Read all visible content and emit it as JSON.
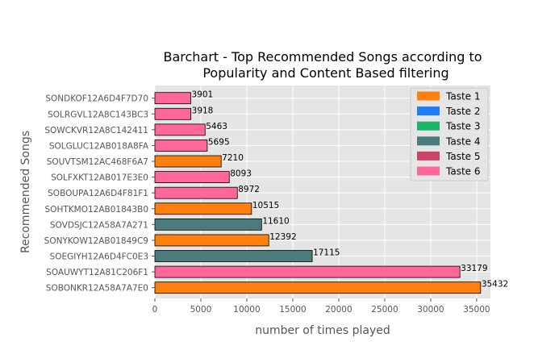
{
  "chart_data": {
    "type": "bar",
    "orientation": "horizontal",
    "title_lines": [
      "Barchart - Top Recommended Songs according to",
      "Popularity and Content Based filtering"
    ],
    "xlabel": "number of times played",
    "ylabel": "Recommended Songs",
    "xlim": [
      0,
      36500
    ],
    "xticks": [
      0,
      5000,
      10000,
      15000,
      20000,
      25000,
      30000,
      35000
    ],
    "grid": true,
    "legend_position": "top-right",
    "legend": [
      {
        "label": "Taste 1",
        "color": "#ff7f0e"
      },
      {
        "label": "Taste 2",
        "color": "#1f7ff7"
      },
      {
        "label": "Taste 3",
        "color": "#19b56d"
      },
      {
        "label": "Taste 4",
        "color": "#4b7b7b"
      },
      {
        "label": "Taste 5",
        "color": "#cc4466"
      },
      {
        "label": "Taste 6",
        "color": "#ff6699"
      }
    ],
    "bars": [
      {
        "category": "SONDKOF12A6D4F7D70",
        "value": 3901,
        "taste": 6
      },
      {
        "category": "SOLRGVL12A8C143BC3",
        "value": 3918,
        "taste": 6
      },
      {
        "category": "SOWCKVR12A8C142411",
        "value": 5463,
        "taste": 6
      },
      {
        "category": "SOLGLUC12AB018A8FA",
        "value": 5695,
        "taste": 6
      },
      {
        "category": "SOUVTSM12AC468F6A7",
        "value": 7210,
        "taste": 1
      },
      {
        "category": "SOLFXKT12AB017E3E0",
        "value": 8093,
        "taste": 6
      },
      {
        "category": "SOBOUPA12A6D4F81F1",
        "value": 8972,
        "taste": 6
      },
      {
        "category": "SOHTKMO12AB01843B0",
        "value": 10515,
        "taste": 1
      },
      {
        "category": "SOVDSJC12A58A7A271",
        "value": 11610,
        "taste": 4
      },
      {
        "category": "SONYKOW12AB01849C9",
        "value": 12392,
        "taste": 1
      },
      {
        "category": "SOEGIYH12A6D4FC0E3",
        "value": 17115,
        "taste": 4
      },
      {
        "category": "SOAUWYT12A81C206F1",
        "value": 33179,
        "taste": 6
      },
      {
        "category": "SOBONKR12A58A7A7E0",
        "value": 35432,
        "taste": 1
      }
    ]
  }
}
